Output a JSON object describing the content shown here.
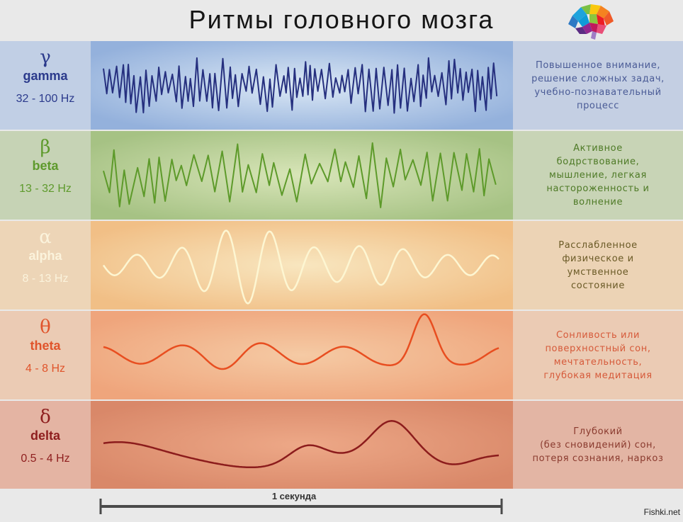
{
  "title": "Ритмы головного мозга",
  "logo_icon": "brain-icon",
  "rhythms": [
    {
      "symbol": "γ",
      "name": "gamma",
      "range": "32 - 100 Hz",
      "description": [
        "Повышенное внимание,",
        "решение сложных задач,",
        "учебно-познавательный",
        "процесс"
      ],
      "text_color": "#2b3a8c",
      "desc_color": "#4a5b96",
      "wave_color": "#26307f",
      "left_bg": "#c1cfe5",
      "mid_bg": "#94b1dc",
      "mid_center": "#dbe8f5",
      "right_bg": "#c4cfe3"
    },
    {
      "symbol": "β",
      "name": "beta",
      "range": "13 - 32 Hz",
      "description": [
        "Активное",
        "бодрствование,",
        "мышление, легкая",
        "настороженность и",
        "волнение"
      ],
      "text_color": "#5e9a2c",
      "desc_color": "#4e7a26",
      "wave_color": "#5d9a2a",
      "left_bg": "#c6d3b5",
      "mid_bg": "#a6c284",
      "mid_center": "#d8e5b8",
      "right_bg": "#c8d4b6"
    },
    {
      "symbol": "α",
      "name": "alpha",
      "range": "8 - 13 Hz",
      "description": [
        "Расслабленное",
        "физическое и",
        "умственное",
        "состояние"
      ],
      "text_color": "#fbf3dc",
      "desc_color": "#6a5a26",
      "wave_color": "#fdf6d2",
      "left_bg": "#edd5b7",
      "mid_bg": "#f1bf86",
      "mid_center": "#f8e6bf",
      "right_bg": "#ecd3b5"
    },
    {
      "symbol": "θ",
      "name": "theta",
      "range": "4 - 8 Hz",
      "description": [
        "Сонливость или",
        "поверхностный сон,",
        "мечтательность,",
        "глубокая медитация"
      ],
      "text_color": "#e0542b",
      "desc_color": "#d65a3a",
      "wave_color": "#e84e20",
      "left_bg": "#ebcbb4",
      "mid_bg": "#efa57c",
      "mid_center": "#f5caa4",
      "right_bg": "#ebcbb4"
    },
    {
      "symbol": "δ",
      "name": "delta",
      "range": "0.5 - 4 Hz",
      "description": [
        "Глубокий",
        "(без сновидений) сон,",
        "потеря сознания, наркоз"
      ],
      "text_color": "#8e1e1e",
      "desc_color": "#8a3a2e",
      "wave_color": "#8c1c1c",
      "left_bg": "#e4b4a3",
      "mid_bg": "#d98869",
      "mid_center": "#eda887",
      "right_bg": "#e3b5a4"
    }
  ],
  "scale_label": "1 секунда",
  "watermark": "Fishki.net"
}
